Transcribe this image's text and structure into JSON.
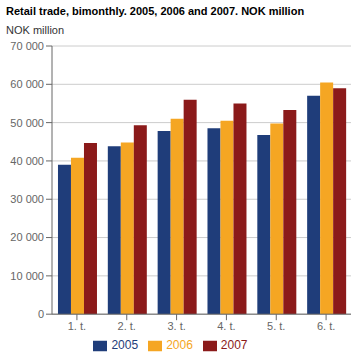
{
  "chart_data": {
    "type": "bar",
    "title": "Retail trade, bimonthly. 2005, 2006 and 2007. NOK million",
    "ylabel": "NOK million",
    "categories": [
      "1. t.",
      "2. t.",
      "3. t.",
      "4. t.",
      "5. t.",
      "6. t."
    ],
    "series": [
      {
        "name": "2005",
        "color": "#1F3D7A",
        "values": [
          39000,
          43800,
          47800,
          48500,
          46800,
          57000
        ]
      },
      {
        "name": "2006",
        "color": "#F5A623",
        "values": [
          40800,
          44800,
          51000,
          50500,
          49800,
          60500
        ]
      },
      {
        "name": "2007",
        "color": "#8B1A1A",
        "values": [
          44700,
          49300,
          56000,
          55000,
          53300,
          59000
        ]
      }
    ],
    "ylim": [
      0,
      70000
    ],
    "yticks": [
      0,
      {
        "value": 10000,
        "label": "10 000"
      },
      {
        "value": 20000,
        "label": "20 000"
      },
      {
        "value": 30000,
        "label": "30 000"
      },
      {
        "value": 40000,
        "label": "40 000"
      },
      {
        "value": 50000,
        "label": "50 000"
      },
      {
        "value": 60000,
        "label": "60 000"
      },
      {
        "value": 70000,
        "label": "70 000"
      }
    ],
    "grid": true,
    "legend": "bottom"
  }
}
